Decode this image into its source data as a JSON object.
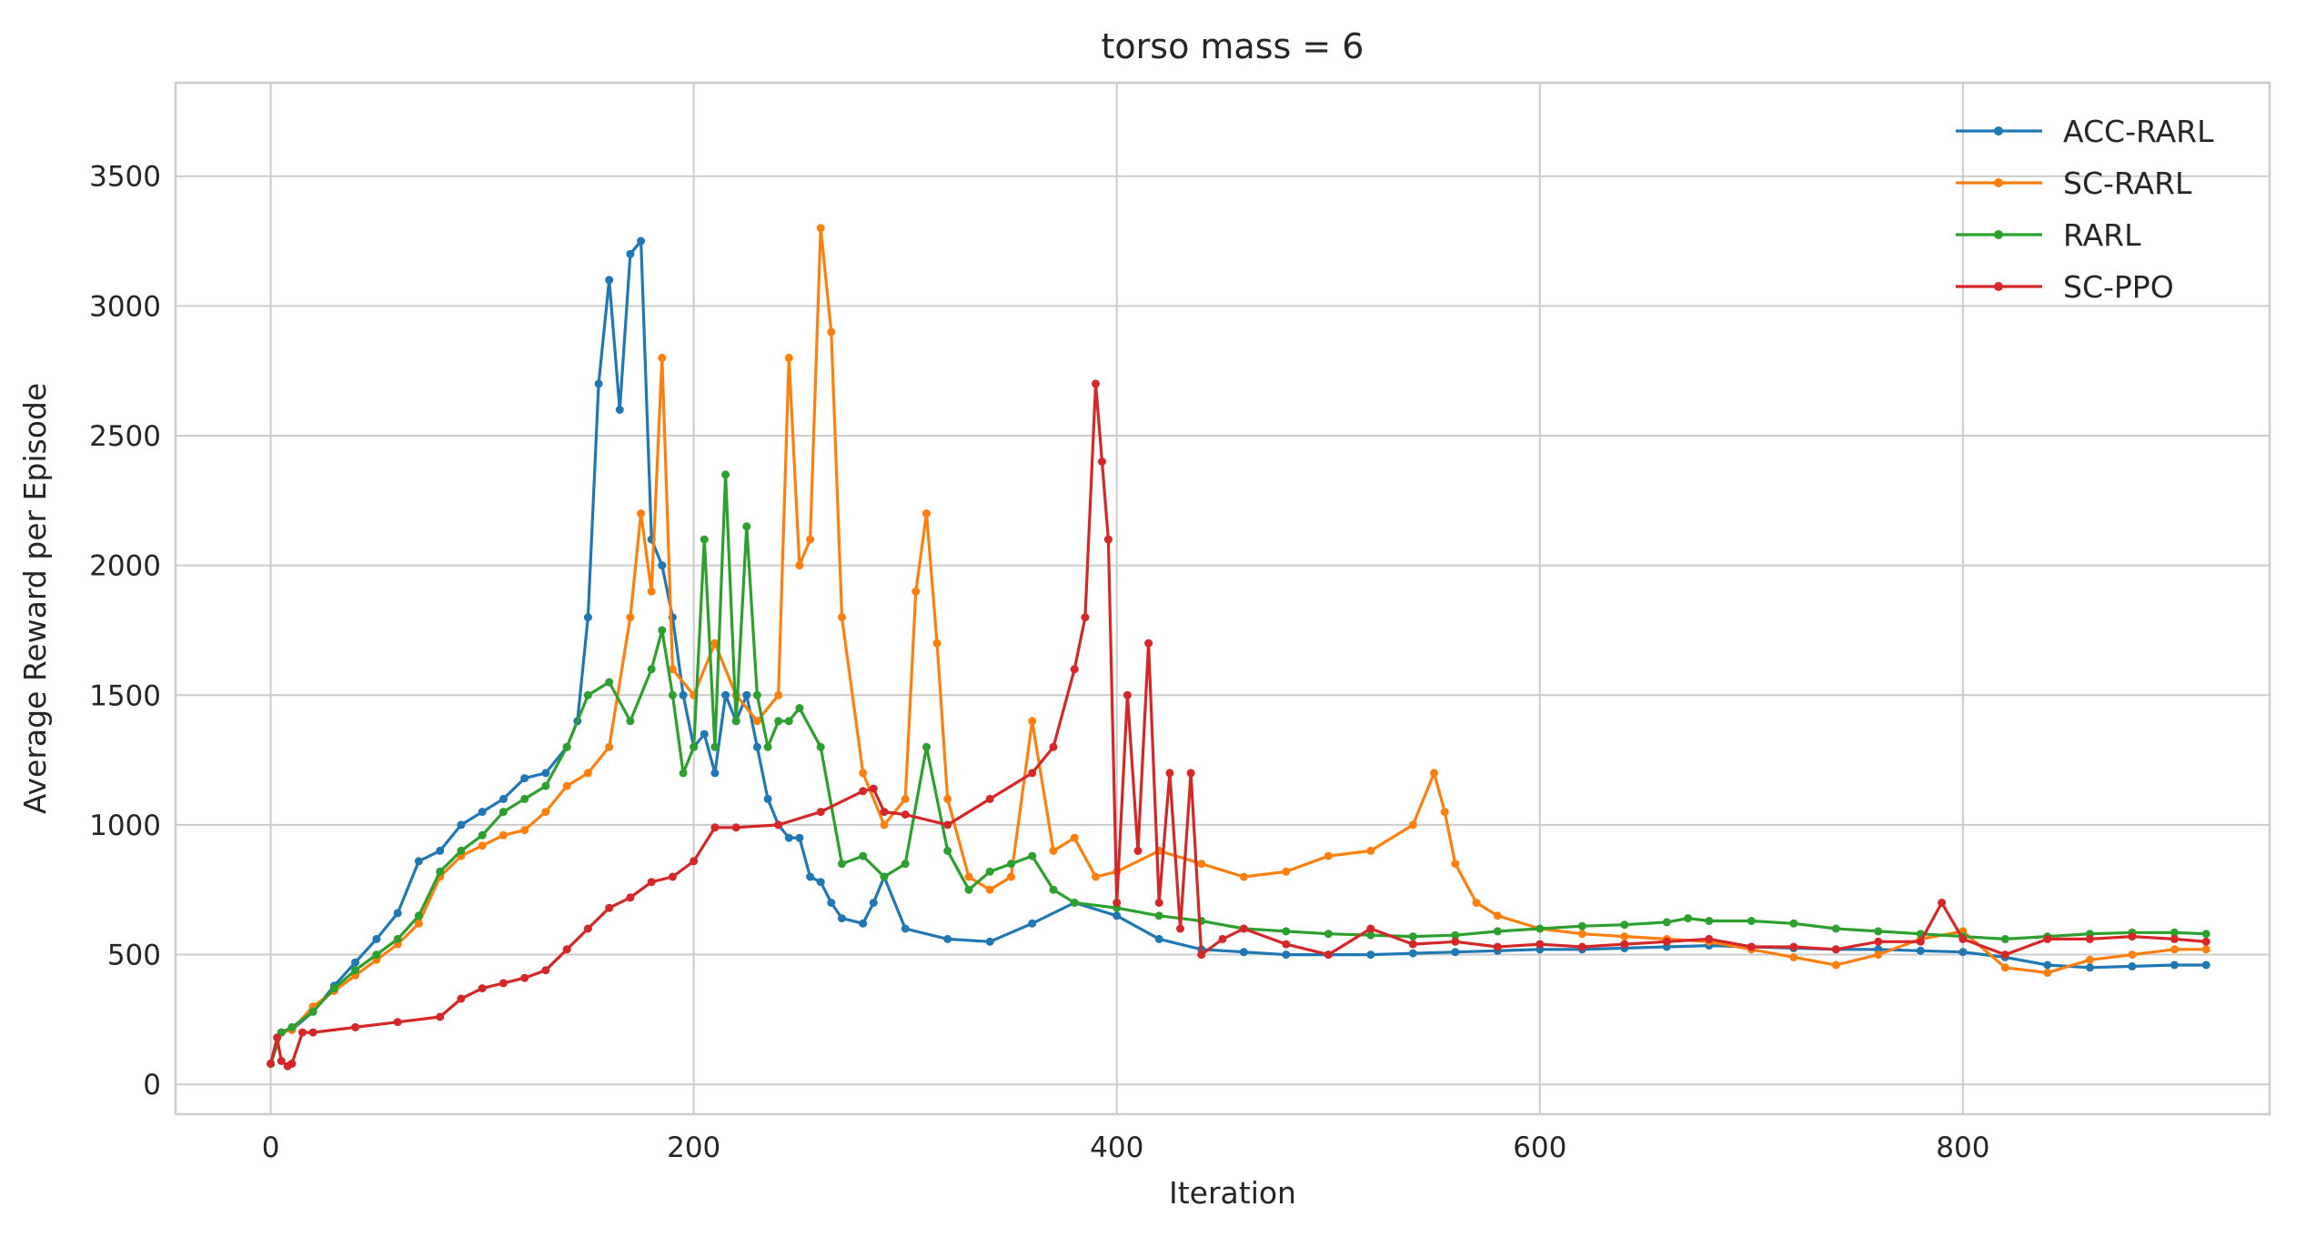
{
  "chart_data": {
    "type": "line",
    "title": "torso mass = 6",
    "xlabel": "Iteration",
    "ylabel": "Average Reward per Episode",
    "xlim": [
      -45,
      945
    ],
    "ylim": [
      -115,
      3860
    ],
    "xticks": [
      0,
      200,
      400,
      600,
      800
    ],
    "yticks": [
      0,
      500,
      1000,
      1500,
      2000,
      2500,
      3000,
      3500
    ],
    "grid": true,
    "legend_position": "top-right",
    "series": [
      {
        "name": "ACC-RARL",
        "color": "#1f77b4",
        "x": [
          0,
          5,
          10,
          20,
          30,
          40,
          50,
          60,
          70,
          80,
          90,
          100,
          110,
          120,
          130,
          140,
          145,
          150,
          155,
          160,
          165,
          170,
          175,
          180,
          185,
          190,
          195,
          200,
          205,
          210,
          215,
          220,
          225,
          230,
          235,
          240,
          245,
          250,
          255,
          260,
          265,
          270,
          280,
          285,
          290,
          300,
          320,
          340,
          360,
          380,
          400,
          420,
          440,
          460,
          480,
          500,
          520,
          540,
          560,
          580,
          600,
          620,
          640,
          660,
          680,
          700,
          720,
          740,
          760,
          780,
          800,
          820,
          840,
          860,
          880,
          900,
          915
        ],
        "y": [
          80,
          200,
          210,
          280,
          380,
          470,
          560,
          660,
          860,
          900,
          1000,
          1050,
          1100,
          1180,
          1200,
          1300,
          1400,
          1800,
          2700,
          3100,
          2600,
          3200,
          3250,
          2100,
          2000,
          1800,
          1500,
          1300,
          1350,
          1200,
          1500,
          1400,
          1500,
          1300,
          1100,
          1000,
          950,
          950,
          800,
          780,
          700,
          640,
          620,
          700,
          800,
          600,
          560,
          550,
          620,
          700,
          650,
          560,
          520,
          510,
          500,
          500,
          500,
          505,
          510,
          515,
          520,
          520,
          525,
          530,
          535,
          530,
          525,
          520,
          520,
          515,
          510,
          490,
          460,
          450,
          455,
          460,
          460
        ]
      },
      {
        "name": "SC-RARL",
        "color": "#ff7f0e",
        "x": [
          0,
          5,
          10,
          20,
          30,
          40,
          50,
          60,
          70,
          80,
          90,
          100,
          110,
          120,
          130,
          140,
          150,
          160,
          170,
          175,
          180,
          185,
          190,
          200,
          210,
          220,
          230,
          240,
          245,
          250,
          255,
          260,
          265,
          270,
          280,
          290,
          300,
          305,
          310,
          315,
          320,
          330,
          340,
          350,
          360,
          370,
          380,
          390,
          400,
          420,
          440,
          460,
          480,
          500,
          520,
          540,
          550,
          555,
          560,
          570,
          580,
          600,
          620,
          640,
          660,
          680,
          700,
          720,
          740,
          760,
          780,
          800,
          820,
          840,
          860,
          880,
          900,
          915
        ],
        "y": [
          80,
          200,
          210,
          300,
          360,
          420,
          480,
          540,
          620,
          800,
          880,
          920,
          960,
          980,
          1050,
          1150,
          1200,
          1300,
          1800,
          2200,
          1900,
          2800,
          1600,
          1500,
          1700,
          1500,
          1400,
          1500,
          2800,
          2000,
          2100,
          3300,
          2900,
          1800,
          1200,
          1000,
          1100,
          1900,
          2200,
          1700,
          1100,
          800,
          750,
          800,
          1400,
          900,
          950,
          800,
          820,
          900,
          850,
          800,
          820,
          880,
          900,
          1000,
          1200,
          1050,
          850,
          700,
          650,
          600,
          580,
          570,
          560,
          550,
          520,
          490,
          460,
          500,
          560,
          590,
          450,
          430,
          480,
          500,
          520,
          520
        ]
      },
      {
        "name": "RARL",
        "color": "#2ca02c",
        "x": [
          0,
          5,
          10,
          20,
          30,
          40,
          50,
          60,
          70,
          80,
          90,
          100,
          110,
          120,
          130,
          140,
          150,
          160,
          170,
          180,
          185,
          190,
          195,
          200,
          205,
          210,
          215,
          220,
          225,
          230,
          235,
          240,
          245,
          250,
          260,
          270,
          280,
          290,
          300,
          310,
          320,
          330,
          340,
          350,
          360,
          370,
          380,
          400,
          420,
          440,
          460,
          480,
          500,
          520,
          540,
          560,
          580,
          600,
          620,
          640,
          660,
          670,
          680,
          700,
          720,
          740,
          760,
          780,
          800,
          820,
          840,
          860,
          880,
          900,
          915
        ],
        "y": [
          80,
          200,
          220,
          280,
          370,
          440,
          500,
          560,
          650,
          820,
          900,
          960,
          1050,
          1100,
          1150,
          1300,
          1500,
          1550,
          1400,
          1600,
          1750,
          1500,
          1200,
          1300,
          2100,
          1300,
          2350,
          1400,
          2150,
          1500,
          1300,
          1400,
          1400,
          1450,
          1300,
          850,
          880,
          800,
          850,
          1300,
          900,
          750,
          820,
          850,
          880,
          750,
          700,
          680,
          650,
          630,
          600,
          590,
          580,
          575,
          570,
          575,
          590,
          600,
          610,
          615,
          625,
          640,
          630,
          630,
          620,
          600,
          590,
          580,
          570,
          560,
          570,
          580,
          585,
          585,
          580
        ]
      },
      {
        "name": "SC-PPO",
        "color": "#d62728",
        "x": [
          0,
          3,
          5,
          8,
          10,
          15,
          20,
          40,
          60,
          80,
          90,
          100,
          110,
          120,
          130,
          140,
          150,
          160,
          170,
          180,
          190,
          200,
          210,
          220,
          240,
          260,
          280,
          285,
          290,
          300,
          320,
          340,
          360,
          370,
          380,
          385,
          390,
          393,
          396,
          400,
          405,
          410,
          415,
          420,
          425,
          430,
          435,
          440,
          450,
          460,
          480,
          500,
          520,
          540,
          560,
          580,
          600,
          620,
          640,
          660,
          680,
          700,
          720,
          740,
          760,
          780,
          790,
          800,
          820,
          840,
          860,
          880,
          900,
          915
        ],
        "y": [
          80,
          180,
          90,
          70,
          80,
          200,
          200,
          220,
          240,
          260,
          330,
          370,
          390,
          410,
          440,
          520,
          600,
          680,
          720,
          780,
          800,
          860,
          990,
          990,
          1000,
          1050,
          1130,
          1140,
          1050,
          1040,
          1000,
          1100,
          1200,
          1300,
          1600,
          1800,
          2700,
          2400,
          2100,
          700,
          1500,
          900,
          1700,
          700,
          1200,
          600,
          1200,
          500,
          560,
          600,
          540,
          500,
          600,
          540,
          550,
          530,
          540,
          530,
          540,
          550,
          560,
          530,
          530,
          520,
          550,
          550,
          700,
          560,
          500,
          560,
          560,
          570,
          560,
          550
        ]
      }
    ]
  }
}
